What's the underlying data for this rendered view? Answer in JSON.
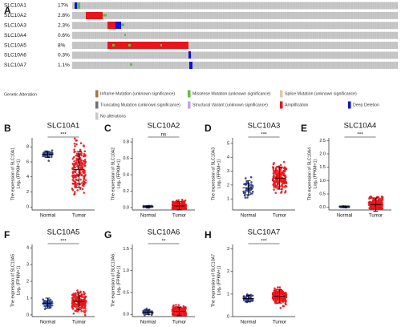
{
  "panel_a": {
    "letter": "A",
    "rows": [
      {
        "gene": "SLC10A1",
        "percent": "17%"
      },
      {
        "gene": "SLC10A2",
        "percent": "2.8%"
      },
      {
        "gene": "SLC10A3",
        "percent": "2.3%"
      },
      {
        "gene": "SLC10A4",
        "percent": "0.6%"
      },
      {
        "gene": "SLC10A5",
        "percent": "8%"
      },
      {
        "gene": "SLC10A6",
        "percent": "0.3%"
      },
      {
        "gene": "SLC10A7",
        "percent": "1.1%"
      }
    ],
    "legend_title": "Genetic Alteration",
    "legend": [
      {
        "label": "Inframe Mutation (unknown significance)",
        "color": "#a07a3c"
      },
      {
        "label": "Missense Mutation (unknown significance)",
        "color": "#5fbf3f"
      },
      {
        "label": "Splice Mutation (unknown significance)",
        "color": "#e0c8a8"
      },
      {
        "label": "Truncating Mutation (unknown significance)",
        "color": "#707070"
      },
      {
        "label": "Structural Variant (unknown significance)",
        "color": "#c8a0e0"
      },
      {
        "label": "Amplification",
        "color": "#e8151b"
      },
      {
        "label": "Deep Deletion",
        "color": "#1010e0"
      },
      {
        "label": "No alterations",
        "color": "#c8c8c8"
      }
    ]
  },
  "chart_data": [
    {
      "type": "dotplot",
      "letter": "B",
      "title": "SLC10A1",
      "ylabel": [
        "The expression of SLC10A1",
        "Log₂ (FPKM+1)"
      ],
      "significance": "***",
      "ylim": [
        -0.4,
        9.2
      ],
      "yticks": [
        0,
        2,
        4,
        6,
        8
      ],
      "groups": [
        {
          "name": "Normal",
          "color": "#2b3f8f",
          "mean": 7,
          "sd": 0.4
        },
        {
          "name": "Tumor",
          "color": "#e8151b",
          "mean": 5,
          "sd": 2.4
        }
      ]
    },
    {
      "type": "dotplot",
      "letter": "C",
      "title": "SLC10A2",
      "ylabel": [
        "The expression of SLC10A2",
        "Log₂ (FPKM+1)"
      ],
      "significance": "ns",
      "ylim": [
        -0.03,
        0.85
      ],
      "yticks": [
        {
          "value": 0,
          "label": "0.0"
        },
        0.2,
        0.4,
        0.6,
        0.8
      ],
      "groups": [
        {
          "name": "Normal",
          "color": "#2b3f8f",
          "mean": 0.01,
          "sd": 0.01
        },
        {
          "name": "Tumor",
          "color": "#e8151b",
          "mean": 0.02,
          "sd": 0.05
        }
      ]
    },
    {
      "type": "dotplot",
      "letter": "D",
      "title": "SLC10A3",
      "ylabel": [
        "The expression of SLC10A3",
        "Log₂ (FPKM+1)"
      ],
      "significance": "***",
      "ylim": [
        0.2,
        5.4
      ],
      "yticks": [
        1,
        2,
        3,
        4,
        5
      ],
      "groups": [
        {
          "name": "Normal",
          "color": "#2b3f8f",
          "mean": 1.8,
          "sd": 0.5
        },
        {
          "name": "Tumor",
          "color": "#e8151b",
          "mean": 2.5,
          "sd": 0.8
        }
      ]
    },
    {
      "type": "dotplot",
      "letter": "E",
      "title": "SLC10A4",
      "ylabel": [
        "The expression of SLC10A4",
        "Log₂ (FPKM+1)"
      ],
      "significance": "***",
      "ylim": [
        -0.1,
        2.6
      ],
      "yticks": [
        {
          "value": 0,
          "label": "0.0"
        },
        0.5,
        {
          "value": 1,
          "label": "1.0"
        },
        1.5,
        {
          "value": 2,
          "label": "2.0"
        },
        2.5
      ],
      "groups": [
        {
          "name": "Normal",
          "color": "#2b3f8f",
          "mean": 0.02,
          "sd": 0.02
        },
        {
          "name": "Tumor",
          "color": "#e8151b",
          "mean": 0.1,
          "sd": 0.25
        }
      ]
    },
    {
      "type": "dotplot",
      "letter": "F",
      "title": "SLC10A5",
      "ylabel": [
        "The expression of SLC10A5",
        "Log₂ (FPKM+1)"
      ],
      "significance": "***",
      "ylim": [
        -0.1,
        4.2
      ],
      "yticks": [
        0,
        1,
        2,
        3,
        4
      ],
      "groups": [
        {
          "name": "Normal",
          "color": "#2b3f8f",
          "mean": 0.7,
          "sd": 0.3
        },
        {
          "name": "Tumor",
          "color": "#e8151b",
          "mean": 0.8,
          "sd": 0.5
        }
      ]
    },
    {
      "type": "dotplot",
      "letter": "G",
      "title": "SLC10A6",
      "ylabel": [
        "The expression of SLC10A6",
        "Log₂ (FPKM+1)"
      ],
      "significance": "**",
      "ylim": [
        -0.05,
        1.6
      ],
      "yticks": [
        {
          "value": 0,
          "label": "0.0"
        },
        0.5,
        {
          "value": 1,
          "label": "1.0"
        },
        1.5
      ],
      "groups": [
        {
          "name": "Normal",
          "color": "#2b3f8f",
          "mean": 0.05,
          "sd": 0.05
        },
        {
          "name": "Tumor",
          "color": "#e8151b",
          "mean": 0.07,
          "sd": 0.1
        }
      ]
    },
    {
      "type": "dotplot",
      "letter": "H",
      "title": "SLC10A7",
      "ylabel": [
        "The expression of SLC10A7",
        "Log₂ (FPKM+1)"
      ],
      "significance": "***",
      "ylim": [
        0,
        3.2
      ],
      "yticks": [
        0,
        1,
        2,
        3
      ],
      "groups": [
        {
          "name": "Normal",
          "color": "#2b3f8f",
          "mean": 0.8,
          "sd": 0.15
        },
        {
          "name": "Tumor",
          "color": "#e8151b",
          "mean": 0.9,
          "sd": 0.3
        }
      ]
    }
  ]
}
